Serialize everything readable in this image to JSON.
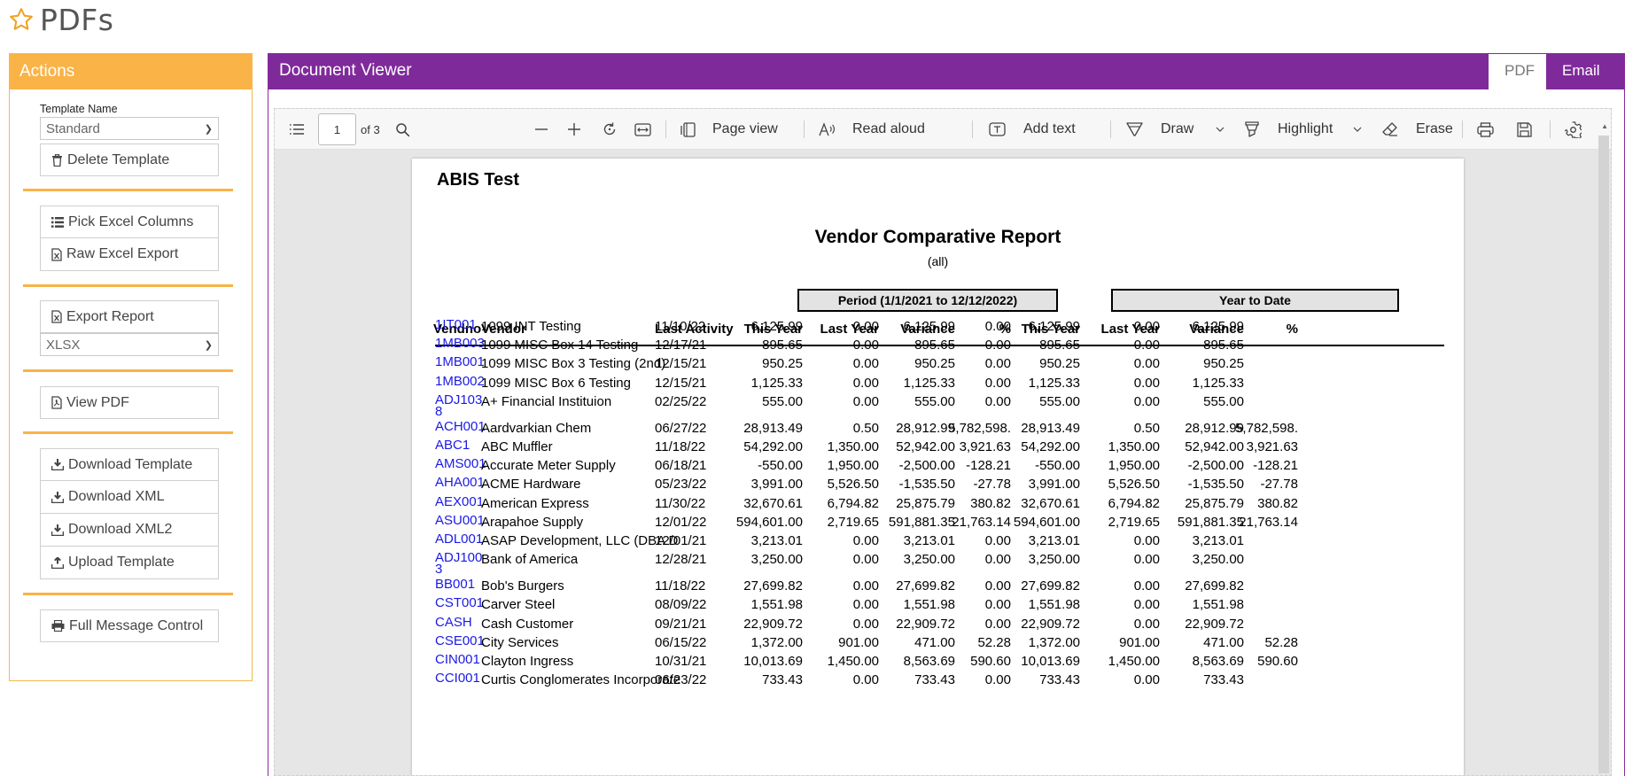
{
  "app": {
    "title": "PDFs"
  },
  "actions": {
    "title": "Actions",
    "template_label": "Template Name",
    "template_value": "Standard",
    "delete_template": "Delete Template",
    "pick_excel_columns": "Pick Excel Columns",
    "raw_excel_export": "Raw Excel Export",
    "export_report": "Export Report",
    "export_format": "XLSX",
    "view_pdf": "View PDF",
    "download_template": "Download Template",
    "download_xml": "Download XML",
    "download_xml2": "Download XML2",
    "upload_template": "Upload Template",
    "full_message_control": "Full Message Control"
  },
  "viewer": {
    "title": "Document Viewer",
    "tabs": {
      "pdf": "PDF",
      "email": "Email"
    },
    "toolbar": {
      "page_number": "1",
      "page_of": "of 3",
      "page_view": "Page view",
      "read_aloud": "Read aloud",
      "add_text": "Add text",
      "draw": "Draw",
      "highlight": "Highlight",
      "erase": "Erase"
    }
  },
  "report": {
    "company": "ABIS Test",
    "title": "Vendor Comparative Report",
    "subtitle": "(all)",
    "period_header": "Period (1/1/2021 to 12/12/2022)",
    "ytd_header": "Year to Date",
    "columns": [
      "Vendno",
      "Vendor",
      "Last Activity",
      "This Year",
      "Last Year",
      "Variance",
      "%",
      "This Year",
      "Last Year",
      "Variance",
      "%"
    ],
    "rows": [
      [
        "1IT001",
        "1099 INT Testing",
        "11/10/22",
        "6,125.99",
        "0.00",
        "6,125.99",
        "0.00",
        "6,125.99",
        "0.00",
        "6,125.99",
        ""
      ],
      [
        "1MB003",
        "1099 MISC Box 14 Testing",
        "12/17/21",
        "895.65",
        "0.00",
        "895.65",
        "0.00",
        "895.65",
        "0.00",
        "895.65",
        ""
      ],
      [
        "1MB001",
        "1099 MISC Box 3 Testing (2nd)",
        "12/15/21",
        "950.25",
        "0.00",
        "950.25",
        "0.00",
        "950.25",
        "0.00",
        "950.25",
        ""
      ],
      [
        "1MB002",
        "1099 MISC Box 6 Testing",
        "12/15/21",
        "1,125.33",
        "0.00",
        "1,125.33",
        "0.00",
        "1,125.33",
        "0.00",
        "1,125.33",
        ""
      ],
      [
        "ADJ103\n8",
        "A+ Financial Instituion",
        "02/25/22",
        "555.00",
        "0.00",
        "555.00",
        "0.00",
        "555.00",
        "0.00",
        "555.00",
        ""
      ],
      [
        "ACH001",
        "Aardvarkian Chem",
        "06/27/22",
        "28,913.49",
        "0.50",
        "28,912.99",
        "5,782,598.",
        "28,913.49",
        "0.50",
        "28,912.99",
        "5,782,598."
      ],
      [
        "ABC1",
        "ABC Muffler",
        "11/18/22",
        "54,292.00",
        "1,350.00",
        "52,942.00",
        "3,921.63",
        "54,292.00",
        "1,350.00",
        "52,942.00",
        "3,921.63"
      ],
      [
        "AMS001",
        "Accurate Meter Supply",
        "06/18/21",
        "-550.00",
        "1,950.00",
        "-2,500.00",
        "-128.21",
        "-550.00",
        "1,950.00",
        "-2,500.00",
        "-128.21"
      ],
      [
        "AHA001",
        "ACME Hardware",
        "05/23/22",
        "3,991.00",
        "5,526.50",
        "-1,535.50",
        "-27.78",
        "3,991.00",
        "5,526.50",
        "-1,535.50",
        "-27.78"
      ],
      [
        "AEX001",
        "American Express",
        "11/30/22",
        "32,670.61",
        "6,794.82",
        "25,875.79",
        "380.82",
        "32,670.61",
        "6,794.82",
        "25,875.79",
        "380.82"
      ],
      [
        "ASU001",
        "Arapahoe Supply",
        "12/01/22",
        "594,601.00",
        "2,719.65",
        "591,881.35",
        "21,763.14",
        "594,601.00",
        "2,719.65",
        "591,881.35",
        "21,763.14"
      ],
      [
        "ADL001",
        "ASAP Development, LLC (DBA D",
        "12/01/21",
        "3,213.01",
        "0.00",
        "3,213.01",
        "0.00",
        "3,213.01",
        "0.00",
        "3,213.01",
        ""
      ],
      [
        "ADJ100\n3",
        "Bank of America",
        "12/28/21",
        "3,250.00",
        "0.00",
        "3,250.00",
        "0.00",
        "3,250.00",
        "0.00",
        "3,250.00",
        ""
      ],
      [
        "BB001",
        "Bob's Burgers",
        "11/18/22",
        "27,699.82",
        "0.00",
        "27,699.82",
        "0.00",
        "27,699.82",
        "0.00",
        "27,699.82",
        ""
      ],
      [
        "CST001",
        "Carver Steel",
        "08/09/22",
        "1,551.98",
        "0.00",
        "1,551.98",
        "0.00",
        "1,551.98",
        "0.00",
        "1,551.98",
        ""
      ],
      [
        "CASH",
        "Cash Customer",
        "09/21/21",
        "22,909.72",
        "0.00",
        "22,909.72",
        "0.00",
        "22,909.72",
        "0.00",
        "22,909.72",
        ""
      ],
      [
        "CSE001",
        "City Services",
        "06/15/22",
        "1,372.00",
        "901.00",
        "471.00",
        "52.28",
        "1,372.00",
        "901.00",
        "471.00",
        "52.28"
      ],
      [
        "CIN001",
        "Clayton Ingress",
        "10/31/21",
        "10,013.69",
        "1,450.00",
        "8,563.69",
        "590.60",
        "10,013.69",
        "1,450.00",
        "8,563.69",
        "590.60"
      ],
      [
        "CCI001",
        "Curtis Conglomerates Incorporate",
        "06/23/22",
        "733.43",
        "0.00",
        "733.43",
        "0.00",
        "733.43",
        "0.00",
        "733.43",
        ""
      ]
    ]
  }
}
